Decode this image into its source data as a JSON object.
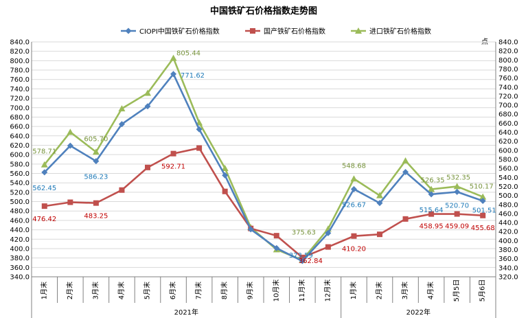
{
  "chart_data": {
    "type": "line",
    "title": "中国铁矿石价格指数走势图",
    "unit_label": "点",
    "categories": [
      "1月末",
      "2月末",
      "3月末",
      "4月末",
      "5月末",
      "6月末",
      "7月末",
      "8月末",
      "9月末",
      "10月末",
      "11月末",
      "12月末",
      "1月末",
      "2月末",
      "3月末",
      "4月末",
      "5月5日",
      "5月6日"
    ],
    "year_groups": [
      {
        "label": "2021年",
        "start": 0,
        "end": 11
      },
      {
        "label": "2022年",
        "start": 12,
        "end": 17
      }
    ],
    "ylim_left": [
      340,
      840
    ],
    "ylim_right": [
      320,
      840
    ],
    "y_step": 20,
    "grid": true,
    "legend_position": "top",
    "series": [
      {
        "name": "CIOPI中国铁矿石价格指数",
        "axis": "left",
        "color": "#4f81bd",
        "label_color": "#1f7ab8",
        "marker": "diamond",
        "values": [
          562.45,
          619,
          586.23,
          665,
          703,
          771.62,
          654,
          556,
          441,
          401,
          373.59,
          433,
          526.67,
          497,
          563,
          515.64,
          520.7,
          501.51
        ]
      },
      {
        "name": "国产铁矿石价格指数",
        "axis": "right",
        "color": "#c0504d",
        "label_color": "#c00000",
        "marker": "square",
        "values": [
          476.42,
          485,
          483.25,
          512,
          562,
          592.71,
          605,
          509,
          427,
          411,
          362.84,
          386,
          410.2,
          414,
          448,
          458.95,
          459.09,
          455.68
        ]
      },
      {
        "name": "进口铁矿石价格指数",
        "axis": "left",
        "color": "#9bbb59",
        "label_color": "#77933c",
        "marker": "triangle",
        "values": [
          578.71,
          648,
          605.7,
          698,
          731,
          805.44,
          668,
          571,
          445,
          398,
          375.63,
          442,
          548.68,
          513,
          587,
          526.35,
          532.35,
          510.17
        ]
      }
    ],
    "data_labels": [
      {
        "series": 0,
        "index": 0,
        "text": "562.45"
      },
      {
        "series": 0,
        "index": 2,
        "text": "586.23"
      },
      {
        "series": 0,
        "index": 5,
        "text": "771.62"
      },
      {
        "series": 0,
        "index": 10,
        "text": "373.59"
      },
      {
        "series": 0,
        "index": 12,
        "text": "526.67"
      },
      {
        "series": 0,
        "index": 15,
        "text": "515.64"
      },
      {
        "series": 0,
        "index": 16,
        "text": "520.70"
      },
      {
        "series": 0,
        "index": 17,
        "text": "501.51"
      },
      {
        "series": 1,
        "index": 0,
        "text": "476.42"
      },
      {
        "series": 1,
        "index": 2,
        "text": "483.25"
      },
      {
        "series": 1,
        "index": 5,
        "text": "592.71"
      },
      {
        "series": 1,
        "index": 10,
        "text": "362.84"
      },
      {
        "series": 1,
        "index": 12,
        "text": "410.20"
      },
      {
        "series": 1,
        "index": 15,
        "text": "458.95"
      },
      {
        "series": 1,
        "index": 16,
        "text": "459.09"
      },
      {
        "series": 1,
        "index": 17,
        "text": "455.68"
      },
      {
        "series": 2,
        "index": 0,
        "text": "578.71"
      },
      {
        "series": 2,
        "index": 2,
        "text": "605.70"
      },
      {
        "series": 2,
        "index": 5,
        "text": "805.44"
      },
      {
        "series": 2,
        "index": 10,
        "text": "375.63"
      },
      {
        "series": 2,
        "index": 12,
        "text": "548.68"
      },
      {
        "series": 2,
        "index": 15,
        "text": "526.35"
      },
      {
        "series": 2,
        "index": 16,
        "text": "532.35"
      },
      {
        "series": 2,
        "index": 17,
        "text": "510.17"
      }
    ]
  }
}
